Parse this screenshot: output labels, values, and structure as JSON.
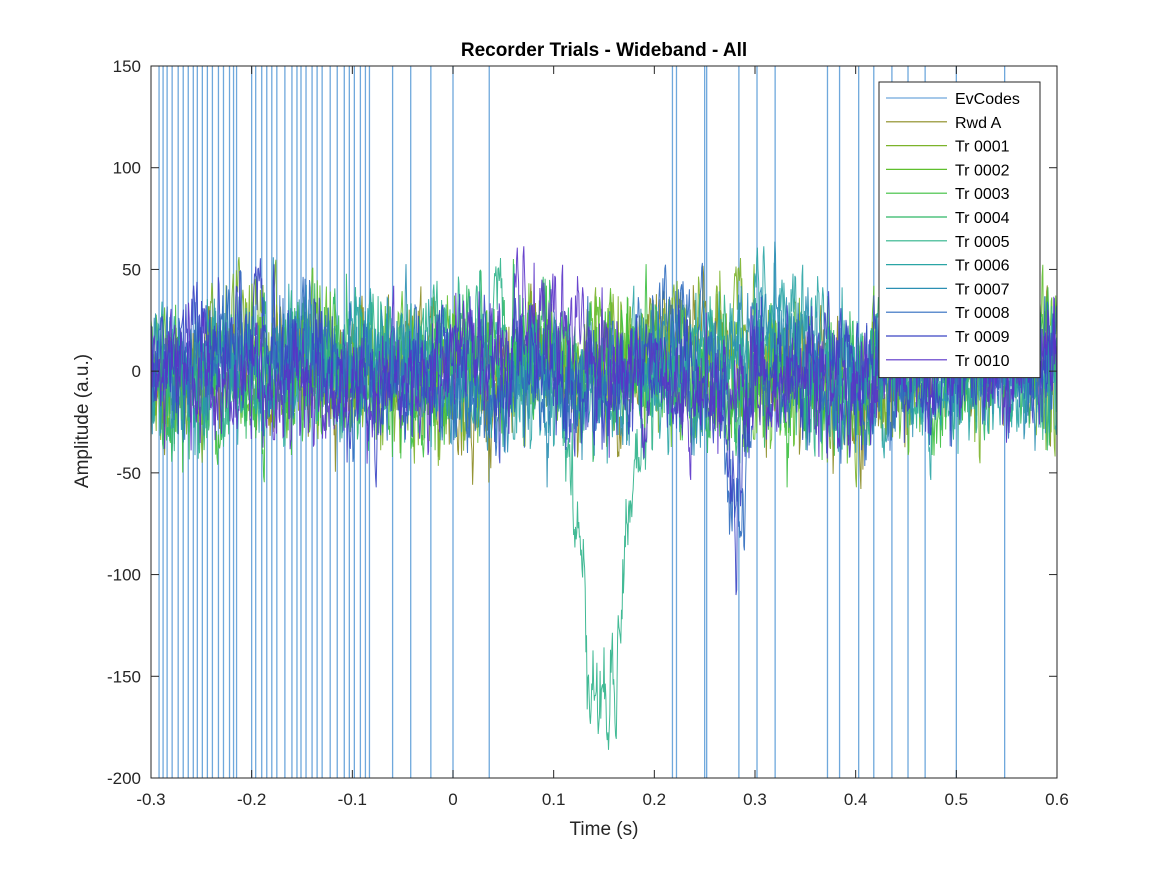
{
  "chart_data": {
    "type": "line",
    "title": "Recorder Trials - Wideband - All",
    "xlabel": "Time (s)",
    "ylabel": "Amplitude (a.u.)",
    "xlim": [
      -0.3,
      0.6
    ],
    "ylim": [
      -200,
      150
    ],
    "x_ticks": [
      -0.3,
      -0.2,
      -0.1,
      0,
      0.1,
      0.2,
      0.3,
      0.4,
      0.5,
      0.6
    ],
    "x_tick_labels": [
      "-0.3",
      "-0.2",
      "-0.1",
      "0",
      "0.1",
      "0.2",
      "0.3",
      "0.4",
      "0.5",
      "0.6"
    ],
    "y_ticks": [
      -200,
      -150,
      -100,
      -50,
      0,
      50,
      100,
      150
    ],
    "y_tick_labels": [
      "-200",
      "-150",
      "-100",
      "-50",
      "0",
      "50",
      "100",
      "150"
    ],
    "grid": false,
    "legend_position": "top-right",
    "event_code_times": [
      -0.292,
      -0.288,
      -0.284,
      -0.279,
      -0.273,
      -0.268,
      -0.263,
      -0.258,
      -0.254,
      -0.249,
      -0.244,
      -0.239,
      -0.233,
      -0.228,
      -0.222,
      -0.218,
      -0.215,
      -0.2,
      -0.196,
      -0.19,
      -0.185,
      -0.18,
      -0.175,
      -0.167,
      -0.16,
      -0.155,
      -0.151,
      -0.146,
      -0.14,
      -0.135,
      -0.13,
      -0.122,
      -0.115,
      -0.108,
      -0.103,
      -0.098,
      -0.092,
      -0.087,
      -0.083,
      -0.06,
      -0.042,
      -0.022,
      0.0,
      0.036,
      0.218,
      0.222,
      0.25,
      0.252,
      0.284,
      0.302,
      0.32,
      0.372,
      0.384,
      0.403,
      0.418,
      0.436,
      0.452,
      0.469,
      0.5,
      0.548
    ],
    "series": [
      {
        "name": "EvCodes",
        "color": "#6fa8dc"
      },
      {
        "name": "Rwd A",
        "color": "#8a8a1f"
      },
      {
        "name": "Tr 0001",
        "color": "#7cb32a"
      },
      {
        "name": "Tr 0002",
        "color": "#5fbf2d"
      },
      {
        "name": "Tr 0003",
        "color": "#3bbf3e"
      },
      {
        "name": "Tr 0004",
        "color": "#2fb866"
      },
      {
        "name": "Tr 0005",
        "color": "#2db38a"
      },
      {
        "name": "Tr 0006",
        "color": "#2aa5a5"
      },
      {
        "name": "Tr 0007",
        "color": "#2b8fb3"
      },
      {
        "name": "Tr 0008",
        "color": "#2f6bbf"
      },
      {
        "name": "Tr 0009",
        "color": "#3a45c4"
      },
      {
        "name": "Tr 0010",
        "color": "#5a32c8"
      }
    ]
  }
}
